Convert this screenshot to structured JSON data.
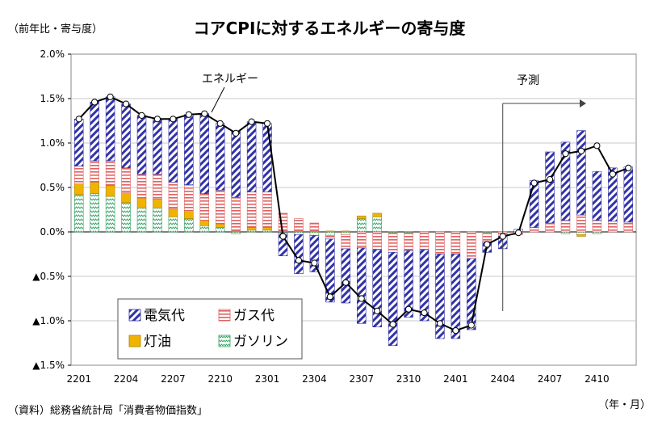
{
  "chart_data": {
    "type": "bar",
    "title": "コアCPIに対するエネルギーの寄与度",
    "y_unit_label": "（前年比・寄与度）",
    "x_unit_label": "（年・月）",
    "source_note": "（資料）総務省統計局「消費者物価指数」",
    "ylim": [
      -1.5,
      2.0
    ],
    "y_ticks": [
      {
        "value": 2.0,
        "label": "2.0%"
      },
      {
        "value": 1.5,
        "label": "1.5%"
      },
      {
        "value": 1.0,
        "label": "1.0%"
      },
      {
        "value": 0.5,
        "label": "0.5%"
      },
      {
        "value": 0.0,
        "label": "0.0%"
      },
      {
        "value": -0.5,
        "label": "▲0.5%"
      },
      {
        "value": -1.0,
        "label": "▲1.0%"
      },
      {
        "value": -1.5,
        "label": "▲1.5%"
      }
    ],
    "categories": [
      "2201",
      "2202",
      "2203",
      "2204",
      "2205",
      "2206",
      "2207",
      "2208",
      "2209",
      "2210",
      "2211",
      "2212",
      "2301",
      "2302",
      "2303",
      "2304",
      "2305",
      "2306",
      "2307",
      "2308",
      "2309",
      "2310",
      "2311",
      "2312",
      "2401",
      "2402",
      "2403",
      "2404",
      "2405",
      "2406",
      "2407",
      "2408",
      "2409",
      "2410",
      "2411",
      "2412"
    ],
    "x_tick_labels": [
      "2201",
      "2204",
      "2207",
      "2210",
      "2301",
      "2304",
      "2307",
      "2310",
      "2401",
      "2404",
      "2407",
      "2410"
    ],
    "stacked": true,
    "series": [
      {
        "name": "ガソリン",
        "values": [
          0.42,
          0.43,
          0.4,
          0.33,
          0.27,
          0.27,
          0.17,
          0.15,
          0.07,
          0.05,
          -0.02,
          0.02,
          0.02,
          -0.01,
          -0.03,
          -0.04,
          -0.04,
          -0.03,
          0.15,
          0.17,
          -0.01,
          -0.01,
          0.0,
          0.0,
          0.0,
          0.0,
          -0.01,
          0.0,
          0.0,
          0.0,
          0.0,
          -0.02,
          -0.03,
          -0.02,
          0.0,
          0.0
        ]
      },
      {
        "name": "灯油",
        "values": [
          0.12,
          0.13,
          0.12,
          0.11,
          0.11,
          0.1,
          0.09,
          0.09,
          0.06,
          0.04,
          0.01,
          0.03,
          0.03,
          0.01,
          0.01,
          0.01,
          0.01,
          0.01,
          0.03,
          0.04,
          0.0,
          0.0,
          0.0,
          0.0,
          0.0,
          0.0,
          0.0,
          0.0,
          0.0,
          0.0,
          0.0,
          0.0,
          -0.02,
          0.0,
          0.0,
          0.0
        ]
      },
      {
        "name": "ガス代",
        "values": [
          0.2,
          0.24,
          0.28,
          0.28,
          0.27,
          0.28,
          0.3,
          0.29,
          0.3,
          0.38,
          0.38,
          0.4,
          0.4,
          0.2,
          0.14,
          0.09,
          -0.04,
          -0.16,
          -0.18,
          -0.2,
          -0.22,
          -0.2,
          -0.2,
          -0.25,
          -0.25,
          -0.3,
          -0.1,
          -0.05,
          -0.03,
          0.05,
          0.1,
          0.13,
          0.19,
          0.13,
          0.12,
          0.11
        ]
      },
      {
        "name": "電気代",
        "values": [
          0.53,
          0.66,
          0.72,
          0.72,
          0.66,
          0.62,
          0.71,
          0.79,
          0.9,
          0.75,
          0.74,
          0.79,
          0.77,
          -0.26,
          -0.44,
          -0.41,
          -0.71,
          -0.61,
          -0.85,
          -0.87,
          -1.05,
          -0.75,
          -0.8,
          -0.95,
          -0.95,
          -0.8,
          -0.12,
          -0.14,
          0.03,
          0.53,
          0.8,
          0.88,
          0.95,
          0.55,
          0.6,
          0.62
        ]
      }
    ],
    "energy_line": {
      "name": "エネルギー",
      "values": [
        1.27,
        1.46,
        1.52,
        1.44,
        1.31,
        1.27,
        1.27,
        1.32,
        1.33,
        1.22,
        1.11,
        1.24,
        1.22,
        -0.05,
        -0.32,
        -0.35,
        -0.73,
        -0.57,
        -0.75,
        -0.89,
        -1.04,
        -0.87,
        -0.91,
        -1.03,
        -1.11,
        -1.05,
        -0.14,
        -0.05,
        -0.01,
        0.55,
        0.59,
        0.88,
        0.91,
        0.97,
        0.65,
        0.72
      ]
    },
    "annotations": {
      "energy_label": "エネルギー",
      "forecast_label": "予測",
      "forecast_start_category": "2404"
    },
    "legend": {
      "position": "bottom-left",
      "columns": 2,
      "order": [
        "電気代",
        "ガス代",
        "灯油",
        "ガソリン"
      ]
    },
    "colors": {
      "electricity": "#3333a8",
      "gas": "#e06060",
      "kerosene": "#f0b400",
      "gasoline": "#30a060",
      "line": "#000000",
      "axis": "#000000",
      "grid": "#c8c8c8"
    }
  }
}
